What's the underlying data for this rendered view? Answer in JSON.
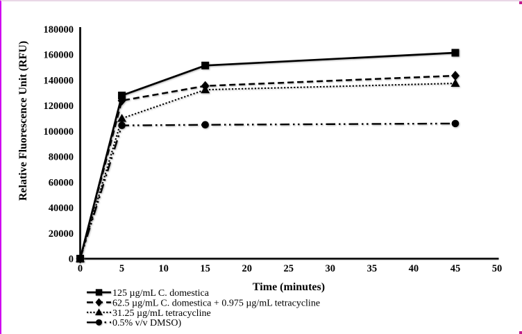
{
  "frame": {
    "background": "#ffffff",
    "left_border_color": "#cf00f0",
    "top_border_color": "#e9d7e6",
    "corner_dot_color": "#c2188c",
    "ink_color": "#000000"
  },
  "chart_data": {
    "type": "line",
    "title": "",
    "xlabel": "Time (minutes)",
    "ylabel": "Relative Fluorescence Unit (RFU)",
    "xlim": [
      0,
      50
    ],
    "ylim": [
      0,
      180000
    ],
    "xticks": [
      0,
      5,
      10,
      15,
      20,
      25,
      30,
      35,
      40,
      45,
      50
    ],
    "yticks": [
      0,
      20000,
      40000,
      60000,
      80000,
      100000,
      120000,
      140000,
      160000,
      180000
    ],
    "x": [
      0,
      5,
      15,
      45
    ],
    "grid": false,
    "legend_position": "bottom-left",
    "series": [
      {
        "name": "125 µg/mL C. domestica",
        "marker": "square",
        "line": "solid",
        "values": [
          0,
          128000,
          151500,
          161500
        ]
      },
      {
        "name": "62.5 µg/mL C. domestica + 0.975 µg/mL tetracycline",
        "marker": "diamond",
        "line": "dashed",
        "values": [
          0,
          124000,
          135500,
          143500
        ]
      },
      {
        "name": "31.25 µg/mL tetracycline",
        "marker": "triangle",
        "line": "dotted",
        "values": [
          0,
          110000,
          132500,
          137500
        ]
      },
      {
        "name": "0.5% v/v DMSO)",
        "marker": "circle",
        "line": "dash-dot-dot",
        "values": [
          0,
          104500,
          105000,
          106000
        ]
      }
    ]
  }
}
